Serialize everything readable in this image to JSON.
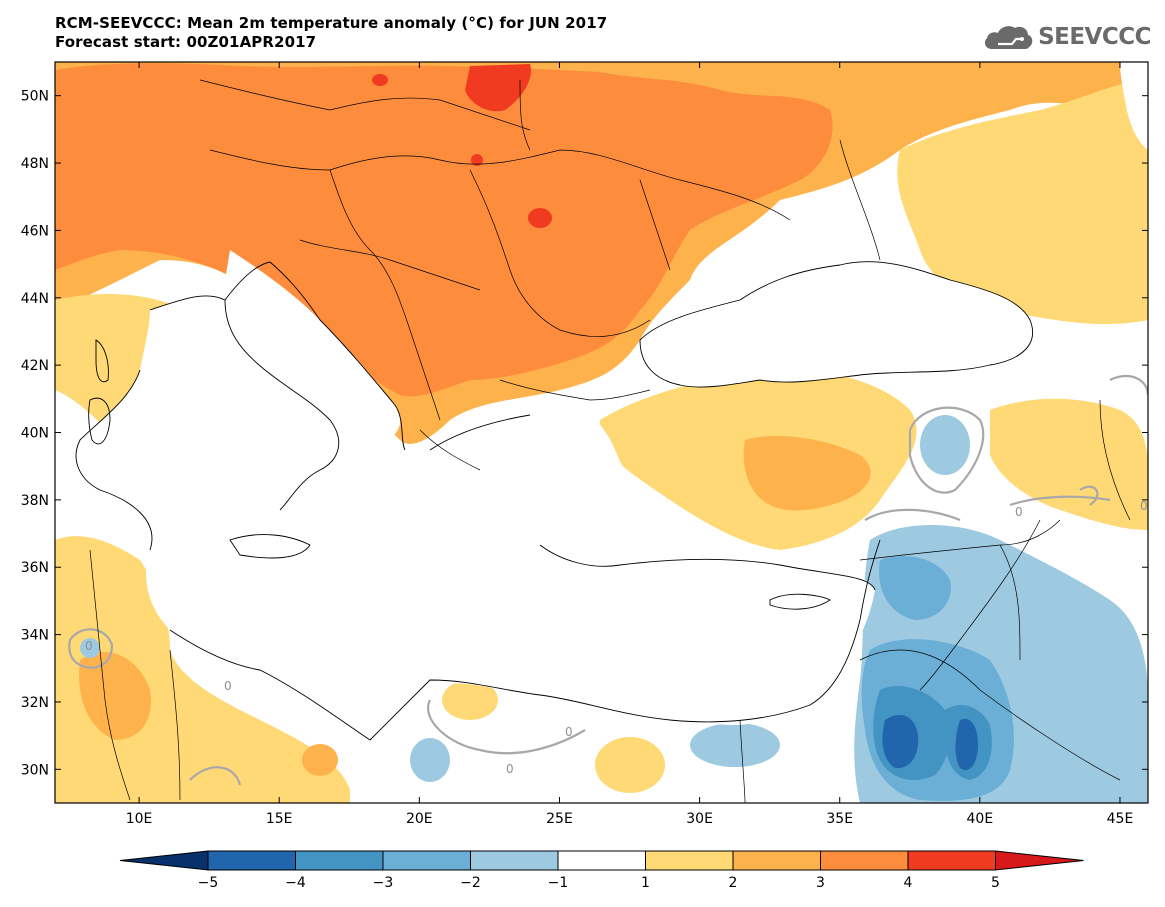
{
  "header": {
    "title_line1": "RCM-SEEVCCC: Mean 2m temperature anomaly (°C) for JUN 2017",
    "title_line2": "Forecast start: 00Z01APR2017"
  },
  "logo": {
    "text": "SEEVCCC",
    "icon": "cloud-icon",
    "color": "#6a6a6a"
  },
  "map": {
    "lon_range": [
      7,
      46
    ],
    "lat_range": [
      29,
      51
    ],
    "lon_ticks": [
      {
        "value": 10,
        "label": "10E"
      },
      {
        "value": 15,
        "label": "15E"
      },
      {
        "value": 20,
        "label": "20E"
      },
      {
        "value": 25,
        "label": "25E"
      },
      {
        "value": 30,
        "label": "30E"
      },
      {
        "value": 35,
        "label": "35E"
      },
      {
        "value": 40,
        "label": "40E"
      },
      {
        "value": 45,
        "label": "45E"
      }
    ],
    "lat_ticks": [
      {
        "value": 50,
        "label": "50N"
      },
      {
        "value": 48,
        "label": "48N"
      },
      {
        "value": 46,
        "label": "46N"
      },
      {
        "value": 44,
        "label": "44N"
      },
      {
        "value": 42,
        "label": "42N"
      },
      {
        "value": 40,
        "label": "40N"
      },
      {
        "value": 38,
        "label": "38N"
      },
      {
        "value": 36,
        "label": "36N"
      },
      {
        "value": 34,
        "label": "34N"
      },
      {
        "value": 32,
        "label": "32N"
      },
      {
        "value": 30,
        "label": "30N"
      }
    ],
    "contour_labels": [
      "0",
      "0",
      "0",
      "0",
      "0",
      "0"
    ]
  },
  "colorbar": {
    "levels": [
      "−5",
      "−4",
      "−3",
      "−2",
      "−1",
      "1",
      "2",
      "3",
      "4",
      "5"
    ],
    "colors": [
      "#08306b",
      "#2166ac",
      "#4393c3",
      "#6baed6",
      "#9ecae1",
      "#ffffff",
      "#fed976",
      "#feb24c",
      "#fd8d3c",
      "#f03b20",
      "#d7191c"
    ]
  }
}
